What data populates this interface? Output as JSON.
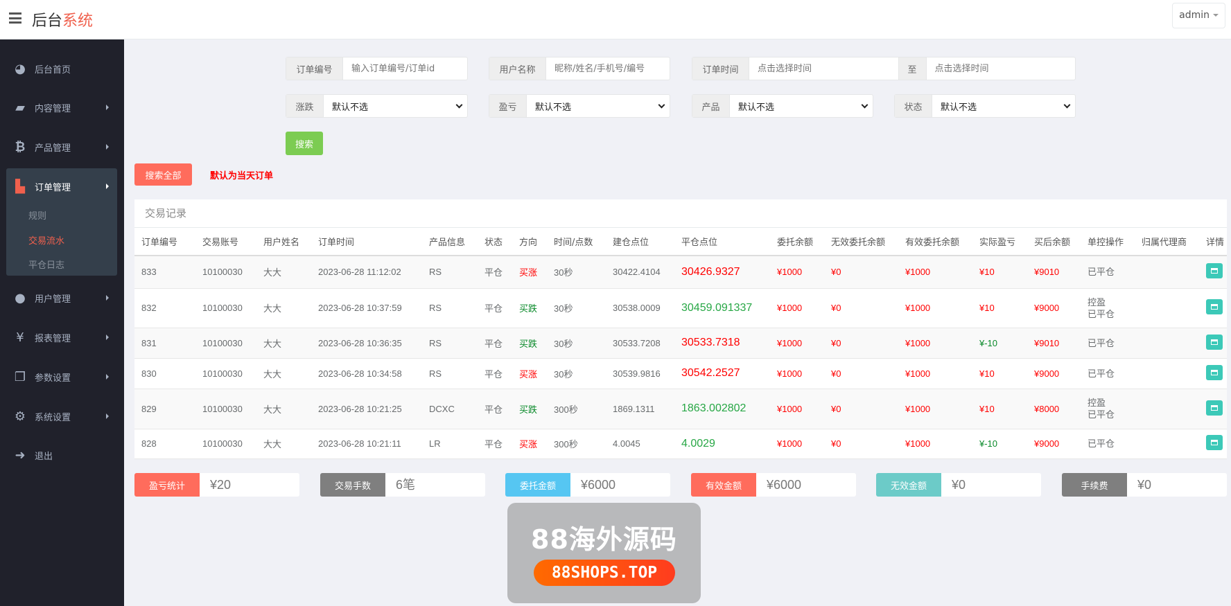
{
  "header": {
    "title_main": "后台",
    "title_accent": "系统",
    "user": "admin"
  },
  "sidebar": {
    "items": [
      {
        "label": "后台首页",
        "icon": "dashboard-icon"
      },
      {
        "label": "内容管理",
        "icon": "book-icon"
      },
      {
        "label": "产品管理",
        "icon": "bitcoin-icon"
      },
      {
        "label": "订单管理",
        "icon": "files-icon",
        "sub": [
          "规则",
          "交易流水",
          "平仓日志"
        ]
      },
      {
        "label": "用户管理",
        "icon": "user-icon"
      },
      {
        "label": "报表管理",
        "icon": "yen-icon"
      },
      {
        "label": "参数设置",
        "icon": "copy-icon"
      },
      {
        "label": "系统设置",
        "icon": "gears-icon"
      },
      {
        "label": "退出",
        "icon": "sign-out-icon"
      }
    ]
  },
  "filters": {
    "order_no": {
      "label": "订单编号",
      "placeholder": "输入订单编号/订单id"
    },
    "username": {
      "label": "用户名称",
      "placeholder": "昵称/姓名/手机号/编号"
    },
    "order_time": {
      "label": "订单时间",
      "placeholder": "点击选择时间",
      "to": "至",
      "placeholder2": "点击选择时间"
    },
    "rise_fall": {
      "label": "涨跌",
      "value": "默认不选"
    },
    "profit": {
      "label": "盈亏",
      "value": "默认不选"
    },
    "product": {
      "label": "产品",
      "value": "默认不选"
    },
    "status": {
      "label": "状态",
      "value": "默认不选"
    },
    "search": "搜索",
    "search_all": "搜索全部",
    "note": "默认为当天订单"
  },
  "table": {
    "title": "交易记录",
    "headers": [
      "订单编号",
      "交易账号",
      "用户姓名",
      "订单时间",
      "产品信息",
      "状态",
      "方向",
      "时间/点数",
      "建仓点位",
      "平仓点位",
      "委托余额",
      "无效委托余额",
      "有效委托余额",
      "实际盈亏",
      "买后余额",
      "单控操作",
      "归属代理商",
      "详情"
    ],
    "rows": [
      {
        "id": "833",
        "acct": "10100030",
        "name": "大大",
        "time": "2023-06-28 11:12:02",
        "product": "RS",
        "status": "平仓",
        "dir": "买涨",
        "dur": "30秒",
        "open": "30422.4104",
        "close": "30426.9327",
        "entrust": "¥1000",
        "invalid": "¥0",
        "valid": "¥1000",
        "pl": "¥10",
        "after": "¥9010",
        "ctrl1": "",
        "ctrl2": "已平仓",
        "agent": ""
      },
      {
        "id": "832",
        "acct": "10100030",
        "name": "大大",
        "time": "2023-06-28 10:37:59",
        "product": "RS",
        "status": "平仓",
        "dir": "买跌",
        "dur": "30秒",
        "open": "30538.0009",
        "close": "30459.091337",
        "entrust": "¥1000",
        "invalid": "¥0",
        "valid": "¥1000",
        "pl": "¥10",
        "after": "¥9000",
        "ctrl1": "控盈",
        "ctrl2": "已平仓",
        "agent": ""
      },
      {
        "id": "831",
        "acct": "10100030",
        "name": "大大",
        "time": "2023-06-28 10:36:35",
        "product": "RS",
        "status": "平仓",
        "dir": "买跌",
        "dur": "30秒",
        "open": "30533.7208",
        "close": "30533.7318",
        "entrust": "¥1000",
        "invalid": "¥0",
        "valid": "¥1000",
        "pl": "¥-10",
        "after": "¥9010",
        "ctrl1": "",
        "ctrl2": "已平仓",
        "agent": ""
      },
      {
        "id": "830",
        "acct": "10100030",
        "name": "大大",
        "time": "2023-06-28 10:34:58",
        "product": "RS",
        "status": "平仓",
        "dir": "买涨",
        "dur": "30秒",
        "open": "30539.9816",
        "close": "30542.2527",
        "entrust": "¥1000",
        "invalid": "¥0",
        "valid": "¥1000",
        "pl": "¥10",
        "after": "¥9000",
        "ctrl1": "",
        "ctrl2": "已平仓",
        "agent": ""
      },
      {
        "id": "829",
        "acct": "10100030",
        "name": "大大",
        "time": "2023-06-28 10:21:25",
        "product": "DCXC",
        "status": "平仓",
        "dir": "买跌",
        "dur": "300秒",
        "open": "1869.1311",
        "close": "1863.002802",
        "entrust": "¥1000",
        "invalid": "¥0",
        "valid": "¥1000",
        "pl": "¥10",
        "after": "¥8000",
        "ctrl1": "控盈",
        "ctrl2": "已平仓",
        "agent": ""
      },
      {
        "id": "828",
        "acct": "10100030",
        "name": "大大",
        "time": "2023-06-28 10:21:11",
        "product": "LR",
        "status": "平仓",
        "dir": "买涨",
        "dur": "300秒",
        "open": "4.0045",
        "close": "4.0029",
        "entrust": "¥1000",
        "invalid": "¥0",
        "valid": "¥1000",
        "pl": "¥-10",
        "after": "¥9000",
        "ctrl1": "",
        "ctrl2": "已平仓",
        "agent": ""
      }
    ]
  },
  "stats": [
    {
      "label": "盈亏统计",
      "value": "¥20",
      "color": "#ff6c5c"
    },
    {
      "label": "交易手数",
      "value": "6笔",
      "color": "#7f7f7f"
    },
    {
      "label": "委托金额",
      "value": "¥6000",
      "color": "#56c6f2"
    },
    {
      "label": "有效金额",
      "value": "¥6000",
      "color": "#ff6c5c"
    },
    {
      "label": "无效金额",
      "value": "¥0",
      "color": "#6ccbc8"
    },
    {
      "label": "手续费",
      "value": "¥0",
      "color": "#7f7f7f"
    }
  ],
  "watermark": {
    "line1": "88海外源码",
    "line2": "88SHOPS.TOP"
  },
  "colors": {
    "accent": "#f0604d",
    "search": "#7ccc52",
    "search_all": "#ff6c5c",
    "up": "#ff0000",
    "down": "#0a8a2a"
  }
}
